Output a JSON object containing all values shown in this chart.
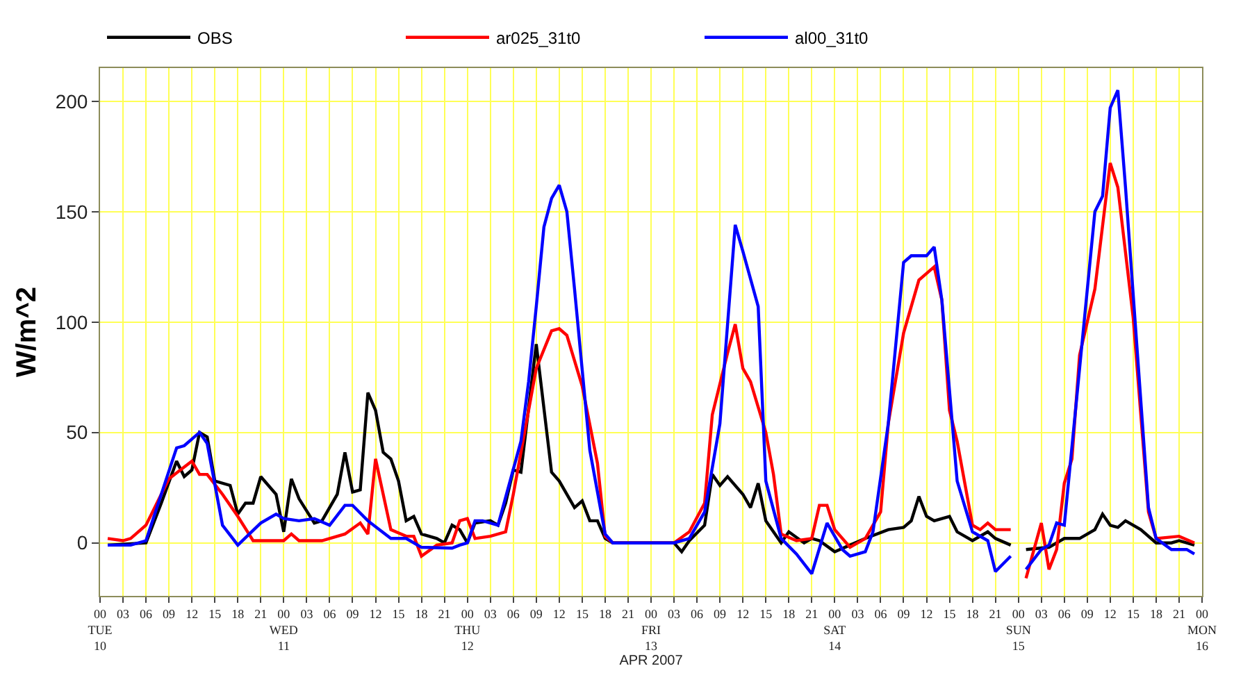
{
  "chart_data": {
    "type": "line",
    "ylabel": "W/m^2",
    "xlabel": "APR 2007",
    "xlim": [
      "2007-04-10T00:00",
      "2007-04-16T00:00"
    ],
    "ylim": [
      -24,
      215
    ],
    "yticks": [
      0,
      50,
      100,
      150,
      200
    ],
    "xticks": [
      {
        "value": "2007-04-10T00:00",
        "label": "00\nTUE\n10"
      },
      {
        "value": "2007-04-10T03:00",
        "label": "03"
      },
      {
        "value": "2007-04-10T06:00",
        "label": "06"
      },
      {
        "value": "2007-04-10T09:00",
        "label": "09"
      },
      {
        "value": "2007-04-10T12:00",
        "label": "12"
      },
      {
        "value": "2007-04-10T15:00",
        "label": "15"
      },
      {
        "value": "2007-04-10T18:00",
        "label": "18"
      },
      {
        "value": "2007-04-10T21:00",
        "label": "21"
      },
      {
        "value": "2007-04-11T00:00",
        "label": "00\nWED\n11"
      },
      {
        "value": "2007-04-11T03:00",
        "label": "03"
      },
      {
        "value": "2007-04-11T06:00",
        "label": "06"
      },
      {
        "value": "2007-04-11T09:00",
        "label": "09"
      },
      {
        "value": "2007-04-11T12:00",
        "label": "12"
      },
      {
        "value": "2007-04-11T15:00",
        "label": "15"
      },
      {
        "value": "2007-04-11T18:00",
        "label": "18"
      },
      {
        "value": "2007-04-11T21:00",
        "label": "21"
      },
      {
        "value": "2007-04-12T00:00",
        "label": "00\nTHU\n12"
      },
      {
        "value": "2007-04-12T03:00",
        "label": "03"
      },
      {
        "value": "2007-04-12T06:00",
        "label": "06"
      },
      {
        "value": "2007-04-12T09:00",
        "label": "09"
      },
      {
        "value": "2007-04-12T12:00",
        "label": "12"
      },
      {
        "value": "2007-04-12T15:00",
        "label": "15"
      },
      {
        "value": "2007-04-12T18:00",
        "label": "18"
      },
      {
        "value": "2007-04-12T21:00",
        "label": "21"
      },
      {
        "value": "2007-04-13T00:00",
        "label": "00\nFRI\n13"
      },
      {
        "value": "2007-04-13T03:00",
        "label": "03"
      },
      {
        "value": "2007-04-13T06:00",
        "label": "06"
      },
      {
        "value": "2007-04-13T09:00",
        "label": "09"
      },
      {
        "value": "2007-04-13T12:00",
        "label": "12"
      },
      {
        "value": "2007-04-13T15:00",
        "label": "15"
      },
      {
        "value": "2007-04-13T18:00",
        "label": "18"
      },
      {
        "value": "2007-04-13T21:00",
        "label": "21"
      },
      {
        "value": "2007-04-14T00:00",
        "label": "00\nSAT\n14"
      },
      {
        "value": "2007-04-14T03:00",
        "label": "03"
      },
      {
        "value": "2007-04-14T06:00",
        "label": "06"
      },
      {
        "value": "2007-04-14T09:00",
        "label": "09"
      },
      {
        "value": "2007-04-14T12:00",
        "label": "12"
      },
      {
        "value": "2007-04-14T15:00",
        "label": "15"
      },
      {
        "value": "2007-04-14T18:00",
        "label": "18"
      },
      {
        "value": "2007-04-14T21:00",
        "label": "21"
      },
      {
        "value": "2007-04-15T00:00",
        "label": "00\nSUN\n15"
      },
      {
        "value": "2007-04-15T03:00",
        "label": "03"
      },
      {
        "value": "2007-04-15T06:00",
        "label": "06"
      },
      {
        "value": "2007-04-15T09:00",
        "label": "09"
      },
      {
        "value": "2007-04-15T12:00",
        "label": "12"
      },
      {
        "value": "2007-04-15T15:00",
        "label": "15"
      },
      {
        "value": "2007-04-15T18:00",
        "label": "18"
      },
      {
        "value": "2007-04-15T21:00",
        "label": "21"
      },
      {
        "value": "2007-04-16T00:00",
        "label": "00\nMON\n16"
      }
    ],
    "grid": true,
    "legend": "top left",
    "line_style": "solid",
    "marker": "none",
    "series": [
      {
        "name": "OBS",
        "color": "#000000",
        "x": [
          "2007-04-10T01:00",
          "2007-04-10T06:00",
          "2007-04-10T08:00",
          "2007-04-10T10:00",
          "2007-04-10T11:00",
          "2007-04-10T12:00",
          "2007-04-10T13:00",
          "2007-04-10T14:00",
          "2007-04-10T15:00",
          "2007-04-10T17:00",
          "2007-04-10T18:00",
          "2007-04-10T19:00",
          "2007-04-10T20:00",
          "2007-04-10T21:00",
          "2007-04-10T23:00",
          "2007-04-11T00:00",
          "2007-04-11T01:00",
          "2007-04-11T02:00",
          "2007-04-11T04:00",
          "2007-04-11T05:00",
          "2007-04-11T07:00",
          "2007-04-11T08:00",
          "2007-04-11T09:00",
          "2007-04-11T10:00",
          "2007-04-11T11:00",
          "2007-04-11T12:00",
          "2007-04-11T13:00",
          "2007-04-11T14:00",
          "2007-04-11T15:00",
          "2007-04-11T16:00",
          "2007-04-11T17:00",
          "2007-04-11T18:00",
          "2007-04-11T20:00",
          "2007-04-11T21:00",
          "2007-04-11T22:00",
          "2007-04-11T23:00",
          "2007-04-12T00:00",
          "2007-04-12T01:00",
          "2007-04-12T03:00",
          "2007-04-12T04:00",
          "2007-04-12T05:00",
          "2007-04-12T06:00",
          "2007-04-12T07:00",
          "2007-04-12T09:00",
          "2007-04-12T11:00",
          "2007-04-12T12:00",
          "2007-04-12T14:00",
          "2007-04-12T15:00",
          "2007-04-12T16:00",
          "2007-04-12T17:00",
          "2007-04-12T18:00",
          "2007-04-12T19:00",
          "2007-04-13T03:00",
          "2007-04-13T04:00",
          "2007-04-13T05:00",
          "2007-04-13T07:00",
          "2007-04-13T08:00",
          "2007-04-13T09:00",
          "2007-04-13T10:00",
          "2007-04-13T12:00",
          "2007-04-13T13:00",
          "2007-04-13T14:00",
          "2007-04-13T15:00",
          "2007-04-13T17:00",
          "2007-04-13T18:00",
          "2007-04-13T20:00",
          "2007-04-13T21:00",
          "2007-04-13T22:00",
          "2007-04-14T00:00",
          "2007-04-14T02:00",
          "2007-04-14T04:00",
          "2007-04-14T07:00",
          "2007-04-14T09:00",
          "2007-04-14T10:00",
          "2007-04-14T11:00",
          "2007-04-14T12:00",
          "2007-04-14T13:00",
          "2007-04-14T15:00",
          "2007-04-14T16:00",
          "2007-04-14T18:00",
          "2007-04-14T20:00",
          "2007-04-14T21:00",
          "2007-04-14T23:00",
          "2007-04-15T00:00",
          "2007-04-15T01:00",
          "2007-04-15T04:00",
          "2007-04-15T06:00",
          "2007-04-15T08:00",
          "2007-04-15T10:00",
          "2007-04-15T11:00",
          "2007-04-15T12:00",
          "2007-04-15T13:00",
          "2007-04-15T14:00",
          "2007-04-15T16:00",
          "2007-04-15T18:00",
          "2007-04-15T20:00",
          "2007-04-15T21:00",
          "2007-04-15T23:00"
        ],
        "values": [
          -1,
          0,
          18,
          37,
          30,
          33,
          50,
          48,
          28,
          26,
          13,
          18,
          18,
          30,
          22,
          5,
          29,
          20,
          9,
          10,
          22,
          41,
          23,
          24,
          68,
          60,
          41,
          38,
          28,
          10,
          12,
          4,
          2,
          0,
          8,
          6,
          0,
          9,
          10,
          8,
          18,
          33,
          32,
          90,
          32,
          28,
          16,
          19,
          10,
          10,
          2,
          0,
          0,
          -4,
          1,
          8,
          31,
          26,
          30,
          22,
          16,
          27,
          10,
          0,
          5,
          0,
          2,
          1,
          -4,
          -1,
          2,
          6,
          7,
          10,
          21,
          12,
          10,
          12,
          5,
          1,
          5,
          2,
          -1,
          null,
          -3,
          -2,
          2,
          2,
          6,
          13,
          8,
          7,
          10,
          6,
          0,
          0,
          1,
          -1
        ]
      },
      {
        "name": "ar025_31t0",
        "color": "#ff0000",
        "x": [
          "2007-04-10T01:00",
          "2007-04-10T03:00",
          "2007-04-10T04:00",
          "2007-04-10T06:00",
          "2007-04-10T08:00",
          "2007-04-10T09:00",
          "2007-04-10T12:00",
          "2007-04-10T13:00",
          "2007-04-10T14:00",
          "2007-04-10T16:00",
          "2007-04-10T18:00",
          "2007-04-10T20:00",
          "2007-04-11T00:00",
          "2007-04-11T01:00",
          "2007-04-11T02:00",
          "2007-04-11T05:00",
          "2007-04-11T08:00",
          "2007-04-11T10:00",
          "2007-04-11T11:00",
          "2007-04-11T12:00",
          "2007-04-11T14:00",
          "2007-04-11T16:00",
          "2007-04-11T17:00",
          "2007-04-11T18:00",
          "2007-04-11T20:00",
          "2007-04-11T22:00",
          "2007-04-11T23:00",
          "2007-04-12T00:00",
          "2007-04-12T01:00",
          "2007-04-12T03:00",
          "2007-04-12T05:00",
          "2007-04-12T06:00",
          "2007-04-12T09:00",
          "2007-04-12T11:00",
          "2007-04-12T12:00",
          "2007-04-12T13:00",
          "2007-04-12T15:00",
          "2007-04-12T17:00",
          "2007-04-12T18:00",
          "2007-04-12T19:00",
          "2007-04-13T03:00",
          "2007-04-13T05:00",
          "2007-04-13T07:00",
          "2007-04-13T08:00",
          "2007-04-13T10:00",
          "2007-04-13T11:00",
          "2007-04-13T12:00",
          "2007-04-13T13:00",
          "2007-04-13T15:00",
          "2007-04-13T16:00",
          "2007-04-13T17:00",
          "2007-04-13T19:00",
          "2007-04-13T21:00",
          "2007-04-13T22:00",
          "2007-04-13T23:00",
          "2007-04-14T00:00",
          "2007-04-14T02:00",
          "2007-04-14T04:00",
          "2007-04-14T06:00",
          "2007-04-14T07:00",
          "2007-04-14T09:00",
          "2007-04-14T11:00",
          "2007-04-14T13:00",
          "2007-04-14T14:00",
          "2007-04-14T15:00",
          "2007-04-14T16:00",
          "2007-04-14T18:00",
          "2007-04-14T19:00",
          "2007-04-14T20:00",
          "2007-04-14T21:00",
          "2007-04-14T23:00",
          "2007-04-15T00:00",
          "2007-04-15T01:00",
          "2007-04-15T03:00",
          "2007-04-15T04:00",
          "2007-04-15T05:00",
          "2007-04-15T06:00",
          "2007-04-15T07:00",
          "2007-04-15T08:00",
          "2007-04-15T10:00",
          "2007-04-15T12:00",
          "2007-04-15T13:00",
          "2007-04-15T15:00",
          "2007-04-15T17:00",
          "2007-04-15T18:00",
          "2007-04-15T21:00",
          "2007-04-15T23:00"
        ],
        "values": [
          2,
          1,
          2,
          8,
          22,
          29,
          37,
          31,
          31,
          22,
          12,
          1,
          1,
          4,
          1,
          1,
          4,
          9,
          4,
          38,
          6,
          3,
          3,
          -6,
          -1,
          0,
          10,
          11,
          2,
          3,
          5,
          22,
          79,
          96,
          97,
          94,
          71,
          36,
          3,
          0,
          0,
          5,
          18,
          58,
          86,
          99,
          79,
          73,
          50,
          31,
          4,
          1,
          2,
          17,
          17,
          6,
          -2,
          2,
          14,
          54,
          95,
          119,
          125,
          110,
          60,
          46,
          8,
          6,
          9,
          6,
          6,
          null,
          -16,
          9,
          -12,
          -3,
          27,
          38,
          85,
          115,
          172,
          161,
          102,
          14,
          2,
          3,
          0
        ]
      },
      {
        "name": "al00_31t0",
        "color": "#0000ff",
        "x": [
          "2007-04-10T01:00",
          "2007-04-10T04:00",
          "2007-04-10T06:00",
          "2007-04-10T10:00",
          "2007-04-10T11:00",
          "2007-04-10T13:00",
          "2007-04-10T14:00",
          "2007-04-10T16:00",
          "2007-04-10T18:00",
          "2007-04-10T21:00",
          "2007-04-10T23:00",
          "2007-04-11T00:00",
          "2007-04-11T02:00",
          "2007-04-11T04:00",
          "2007-04-11T06:00",
          "2007-04-11T08:00",
          "2007-04-11T09:00",
          "2007-04-11T11:00",
          "2007-04-11T14:00",
          "2007-04-11T16:00",
          "2007-04-11T18:00",
          "2007-04-11T22:00",
          "2007-04-11T23:00",
          "2007-04-12T00:00",
          "2007-04-12T01:00",
          "2007-04-12T02:00",
          "2007-04-12T04:00",
          "2007-04-12T07:00",
          "2007-04-12T08:00",
          "2007-04-12T09:00",
          "2007-04-12T10:00",
          "2007-04-12T11:00",
          "2007-04-12T12:00",
          "2007-04-12T13:00",
          "2007-04-12T14:00",
          "2007-04-12T16:00",
          "2007-04-12T18:00",
          "2007-04-12T19:00",
          "2007-04-13T01:00",
          "2007-04-13T03:00",
          "2007-04-13T05:00",
          "2007-04-13T07:00",
          "2007-04-13T09:00",
          "2007-04-13T11:00",
          "2007-04-13T12:00",
          "2007-04-13T14:00",
          "2007-04-13T15:00",
          "2007-04-13T17:00",
          "2007-04-13T19:00",
          "2007-04-13T21:00",
          "2007-04-13T23:00",
          "2007-04-14T01:00",
          "2007-04-14T02:00",
          "2007-04-14T04:00",
          "2007-04-14T05:00",
          "2007-04-14T07:00",
          "2007-04-14T09:00",
          "2007-04-14T10:00",
          "2007-04-14T12:00",
          "2007-04-14T13:00",
          "2007-04-14T14:00",
          "2007-04-14T16:00",
          "2007-04-14T18:00",
          "2007-04-14T20:00",
          "2007-04-14T21:00",
          "2007-04-14T23:00",
          "2007-04-15T00:00",
          "2007-04-15T01:00",
          "2007-04-15T03:00",
          "2007-04-15T04:00",
          "2007-04-15T05:00",
          "2007-04-15T06:00",
          "2007-04-15T08:00",
          "2007-04-15T10:00",
          "2007-04-15T11:00",
          "2007-04-15T12:00",
          "2007-04-15T13:00",
          "2007-04-15T14:00",
          "2007-04-15T17:00",
          "2007-04-15T18:00",
          "2007-04-15T20:00",
          "2007-04-15T22:00",
          "2007-04-15T23:00"
        ],
        "values": [
          -1,
          -1,
          1,
          43,
          44,
          50,
          45,
          8,
          -1,
          9,
          13,
          11,
          10,
          11,
          8,
          17,
          17,
          10,
          2,
          2,
          -2,
          -2.4,
          -1,
          0,
          10,
          10,
          8,
          46,
          73,
          107,
          143,
          156,
          162,
          150,
          115,
          42,
          4,
          0,
          0,
          0,
          2,
          14,
          54,
          144,
          132,
          107,
          28,
          2,
          -5,
          -14,
          9,
          -3,
          -6,
          -4,
          5,
          54,
          127,
          130,
          130,
          134,
          110,
          28,
          5,
          1,
          -13,
          -6,
          null,
          -12,
          -3,
          -1,
          9,
          8,
          79,
          150,
          157,
          197,
          205,
          161,
          16,
          2,
          -3,
          -3,
          -5
        ]
      }
    ]
  }
}
